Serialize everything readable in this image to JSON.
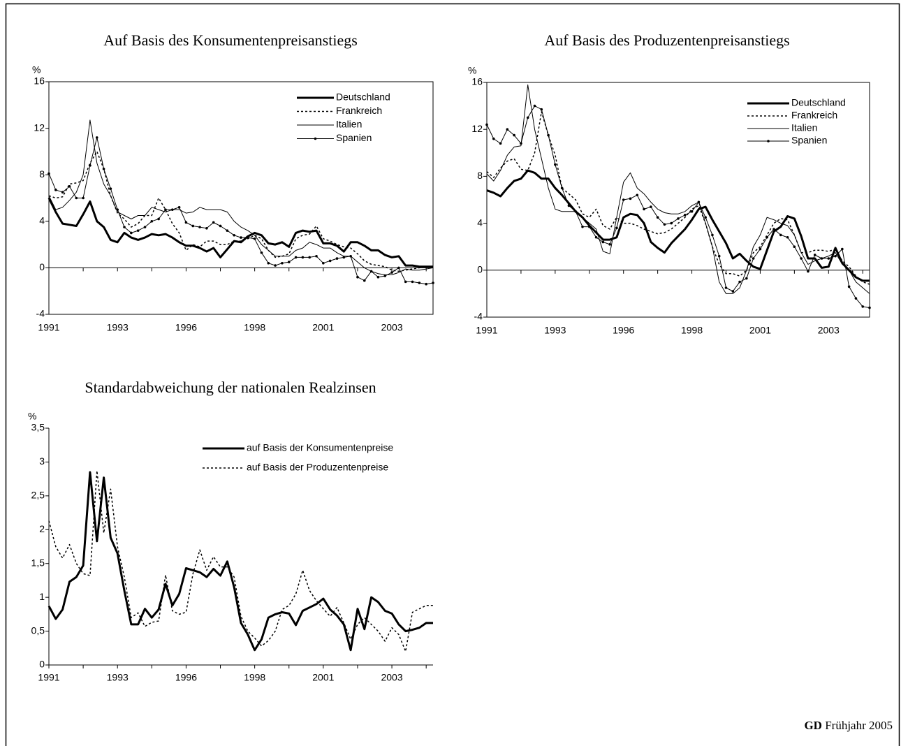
{
  "chart_data": [
    {
      "type": "line",
      "title": "Auf Basis des Konsumentenpreisanstiegs",
      "y_unit": "%",
      "frame": true,
      "categories": [
        "1991",
        null,
        null,
        null,
        null,
        null,
        null,
        null,
        null,
        null,
        "1993",
        null,
        null,
        null,
        null,
        null,
        null,
        null,
        null,
        null,
        "1996",
        null,
        null,
        null,
        null,
        null,
        null,
        null,
        null,
        null,
        "1998",
        null,
        null,
        null,
        null,
        null,
        null,
        null,
        null,
        null,
        "2001",
        null,
        null,
        null,
        null,
        null,
        null,
        null,
        null,
        null,
        "2003",
        null,
        null,
        null,
        null,
        null,
        null
      ],
      "ylim": [
        -4,
        16
      ],
      "yticks": [
        -4,
        0,
        4,
        8,
        12,
        16
      ],
      "series": [
        {
          "name": "Deutschland",
          "color": "#000000",
          "style": "thick",
          "values": [
            6.0,
            4.8,
            3.8,
            3.7,
            3.6,
            4.6,
            5.7,
            4.0,
            3.5,
            2.4,
            2.2,
            3.0,
            2.6,
            2.4,
            2.6,
            2.9,
            2.8,
            2.9,
            2.6,
            2.2,
            1.9,
            1.9,
            1.7,
            1.4,
            1.7,
            0.9,
            1.6,
            2.3,
            2.2,
            2.7,
            3.0,
            2.8,
            2.1,
            2.0,
            2.2,
            1.8,
            3.0,
            3.2,
            3.1,
            3.2,
            2.1,
            2.1,
            1.9,
            1.4,
            2.2,
            2.2,
            1.9,
            1.5,
            1.5,
            1.1,
            0.9,
            1.0,
            0.2,
            0.2,
            0.1,
            0.1,
            0.1
          ]
        },
        {
          "name": "Frankreich",
          "color": "#000000",
          "style": "dotted",
          "values": [
            6.2,
            6.0,
            6.1,
            7.2,
            7.3,
            7.5,
            9.0,
            10.0,
            8.5,
            6.2,
            4.7,
            4.2,
            3.5,
            3.8,
            4.5,
            4.5,
            6.0,
            5.0,
            3.8,
            3.0,
            1.5,
            2.0,
            1.8,
            2.3,
            2.3,
            2.0,
            2.0,
            2.3,
            2.3,
            2.5,
            2.8,
            2.5,
            1.5,
            0.9,
            1.0,
            1.2,
            2.5,
            2.8,
            2.9,
            3.6,
            2.5,
            2.3,
            2.0,
            1.8,
            1.7,
            1.2,
            0.6,
            0.3,
            0.2,
            0.1,
            -0.2,
            -0.3,
            -0.2,
            -0.1,
            0.0,
            0.1,
            0.1
          ]
        },
        {
          "name": "Italien",
          "color": "#000000",
          "style": "thin",
          "values": [
            6.2,
            5.0,
            5.2,
            5.8,
            6.5,
            8.0,
            12.7,
            9.0,
            7.2,
            6.2,
            4.8,
            4.5,
            4.2,
            4.5,
            4.5,
            5.2,
            5.0,
            4.8,
            5.0,
            5.0,
            4.7,
            4.8,
            5.2,
            5.0,
            5.0,
            5.0,
            4.8,
            4.0,
            3.5,
            3.2,
            2.8,
            2.0,
            1.5,
            1.0,
            1.0,
            1.0,
            1.5,
            1.7,
            2.2,
            2.0,
            1.7,
            1.7,
            1.3,
            1.0,
            1.0,
            0.5,
            0.0,
            -0.3,
            -0.5,
            -0.6,
            -0.6,
            -0.4,
            -0.1,
            -0.2,
            -0.2,
            -0.1,
            0.0
          ]
        },
        {
          "name": "Spanien",
          "color": "#000000",
          "style": "marker",
          "values": [
            8.1,
            6.7,
            6.5,
            7.0,
            6.0,
            6.0,
            8.8,
            11.2,
            8.5,
            6.8,
            5.0,
            3.5,
            3.0,
            3.2,
            3.5,
            4.0,
            4.2,
            5.0,
            5.0,
            5.2,
            3.9,
            3.6,
            3.5,
            3.4,
            3.9,
            3.6,
            3.2,
            2.8,
            2.6,
            2.6,
            2.5,
            1.3,
            0.4,
            0.2,
            0.4,
            0.5,
            0.9,
            0.9,
            0.9,
            1.0,
            0.4,
            0.6,
            0.8,
            0.9,
            1.0,
            -0.8,
            -1.1,
            -0.3,
            -0.8,
            -0.7,
            -0.4,
            0.0,
            -1.2,
            -1.2,
            -1.3,
            -1.4,
            -1.3
          ]
        }
      ]
    },
    {
      "type": "line",
      "title": "Auf Basis des Produzentenpreisanstiegs",
      "y_unit": "%",
      "frame": true,
      "categories": [
        "1991",
        null,
        null,
        null,
        null,
        null,
        null,
        null,
        null,
        null,
        "1993",
        null,
        null,
        null,
        null,
        null,
        null,
        null,
        null,
        null,
        "1996",
        null,
        null,
        null,
        null,
        null,
        null,
        null,
        null,
        null,
        "1998",
        null,
        null,
        null,
        null,
        null,
        null,
        null,
        null,
        null,
        "2001",
        null,
        null,
        null,
        null,
        null,
        null,
        null,
        null,
        null,
        "2003",
        null,
        null,
        null,
        null,
        null,
        null
      ],
      "ylim": [
        -4,
        16
      ],
      "yticks": [
        -4,
        0,
        4,
        8,
        12,
        16
      ],
      "series": [
        {
          "name": "Deutschland",
          "color": "#000000",
          "style": "thick",
          "values": [
            6.8,
            6.6,
            6.3,
            7.0,
            7.6,
            7.8,
            8.5,
            8.3,
            7.8,
            7.8,
            7.0,
            6.4,
            5.7,
            5.0,
            4.5,
            3.8,
            3.2,
            2.6,
            2.6,
            2.8,
            4.5,
            4.8,
            4.7,
            4.0,
            2.4,
            1.9,
            1.5,
            2.3,
            2.9,
            3.5,
            4.3,
            5.2,
            5.4,
            4.3,
            3.3,
            2.3,
            1.0,
            1.4,
            0.8,
            0.3,
            0.1,
            1.7,
            3.3,
            3.7,
            4.6,
            4.4,
            2.9,
            1.0,
            1.0,
            0.2,
            0.3,
            1.9,
            0.6,
            0.0,
            -0.6,
            -0.9,
            -0.9
          ]
        },
        {
          "name": "Frankreich",
          "color": "#000000",
          "style": "dotted",
          "values": [
            8.4,
            7.9,
            8.7,
            9.3,
            9.5,
            8.6,
            8.5,
            10.0,
            13.5,
            11.5,
            9.8,
            7.0,
            6.5,
            6.0,
            4.8,
            4.5,
            5.2,
            3.8,
            3.5,
            4.5,
            4.0,
            4.0,
            3.8,
            3.5,
            3.3,
            3.1,
            3.2,
            3.5,
            4.0,
            4.5,
            5.2,
            5.5,
            4.0,
            2.0,
            0.5,
            -0.3,
            -0.3,
            -0.5,
            0.0,
            1.5,
            2.0,
            3.0,
            4.0,
            4.4,
            4.3,
            3.0,
            1.5,
            1.5,
            1.7,
            1.7,
            1.6,
            1.8,
            0.8,
            0.3,
            -0.5,
            -1.0,
            -1.2
          ]
        },
        {
          "name": "Italien",
          "color": "#000000",
          "style": "thin",
          "values": [
            8.2,
            7.6,
            8.5,
            9.8,
            10.5,
            10.6,
            15.8,
            12.0,
            9.5,
            7.0,
            5.2,
            5.0,
            5.0,
            5.0,
            4.5,
            4.0,
            3.5,
            1.6,
            1.4,
            4.5,
            7.5,
            8.3,
            7.0,
            6.5,
            5.8,
            5.2,
            4.9,
            4.8,
            4.8,
            5.0,
            5.5,
            5.8,
            4.0,
            2.0,
            -1.0,
            -2.0,
            -2.0,
            -1.5,
            0.0,
            2.0,
            3.0,
            4.5,
            4.3,
            4.0,
            3.8,
            3.0,
            1.5,
            0.5,
            0.8,
            1.0,
            1.2,
            1.5,
            0.5,
            0.0,
            -1.0,
            -1.5,
            -2.0
          ]
        },
        {
          "name": "Spanien",
          "color": "#000000",
          "style": "marker",
          "values": [
            12.4,
            11.2,
            10.8,
            12.0,
            11.5,
            10.8,
            13.0,
            14.0,
            13.7,
            11.5,
            9.0,
            7.0,
            5.5,
            5.0,
            3.7,
            3.7,
            2.8,
            2.4,
            2.2,
            3.6,
            6.0,
            6.1,
            6.4,
            5.2,
            5.4,
            4.5,
            3.9,
            4.0,
            4.4,
            4.7,
            5.0,
            5.8,
            4.5,
            3.0,
            1.2,
            -1.5,
            -1.8,
            -1.0,
            -0.7,
            1.0,
            1.8,
            2.8,
            3.5,
            3.0,
            2.8,
            2.0,
            1.0,
            -0.1,
            1.3,
            1.0,
            1.0,
            1.2,
            1.8,
            -1.4,
            -2.4,
            -3.1,
            -3.2
          ]
        }
      ]
    },
    {
      "type": "line",
      "title": "Standardabweichung der nationalen Realzinsen",
      "y_unit": "%",
      "frame": false,
      "categories": [
        "1991",
        null,
        null,
        null,
        null,
        null,
        null,
        null,
        null,
        null,
        "1993",
        null,
        null,
        null,
        null,
        null,
        null,
        null,
        null,
        null,
        "1996",
        null,
        null,
        null,
        null,
        null,
        null,
        null,
        null,
        null,
        "1998",
        null,
        null,
        null,
        null,
        null,
        null,
        null,
        null,
        null,
        "2001",
        null,
        null,
        null,
        null,
        null,
        null,
        null,
        null,
        null,
        "2003",
        null,
        null,
        null,
        null,
        null,
        null
      ],
      "ylim": [
        0,
        3.5
      ],
      "yticks": [
        0,
        {
          "value": 0.5,
          "label": "0,5"
        },
        1,
        {
          "value": 1.5,
          "label": "1,5"
        },
        2,
        {
          "value": 2.5,
          "label": "2,5"
        },
        3,
        {
          "value": 3.5,
          "label": "3,5"
        }
      ],
      "series": [
        {
          "name": "auf Basis der Konsumentenpreise",
          "color": "#000000",
          "style": "thick",
          "values": [
            0.87,
            0.68,
            0.82,
            1.23,
            1.3,
            1.47,
            2.85,
            1.83,
            2.77,
            1.88,
            1.65,
            1.1,
            0.6,
            0.6,
            0.83,
            0.7,
            0.82,
            1.2,
            0.88,
            1.05,
            1.43,
            1.4,
            1.37,
            1.3,
            1.42,
            1.32,
            1.53,
            1.15,
            0.62,
            0.45,
            0.22,
            0.38,
            0.7,
            0.75,
            0.78,
            0.76,
            0.59,
            0.8,
            0.85,
            0.9,
            0.98,
            0.82,
            0.73,
            0.6,
            0.22,
            0.83,
            0.53,
            1.0,
            0.93,
            0.8,
            0.76,
            0.6,
            0.5,
            0.52,
            0.55,
            0.62,
            0.62
          ]
        },
        {
          "name": "auf Basis der Produzentenpreise",
          "color": "#000000",
          "style": "dotted",
          "values": [
            2.13,
            1.75,
            1.58,
            1.78,
            1.5,
            1.35,
            1.32,
            2.87,
            1.95,
            2.6,
            1.75,
            1.3,
            0.7,
            0.77,
            0.57,
            0.63,
            0.65,
            1.33,
            0.8,
            0.75,
            0.78,
            1.35,
            1.7,
            1.4,
            1.6,
            1.45,
            1.45,
            1.3,
            0.72,
            0.5,
            0.4,
            0.28,
            0.36,
            0.5,
            0.82,
            0.88,
            1.05,
            1.4,
            1.1,
            0.95,
            0.83,
            0.72,
            0.85,
            0.62,
            0.38,
            0.6,
            0.7,
            0.6,
            0.5,
            0.35,
            0.55,
            0.45,
            0.2,
            0.78,
            0.83,
            0.88,
            0.88
          ]
        }
      ]
    }
  ],
  "footer": {
    "brand": "GD",
    "text": "Frühjahr 2005"
  }
}
